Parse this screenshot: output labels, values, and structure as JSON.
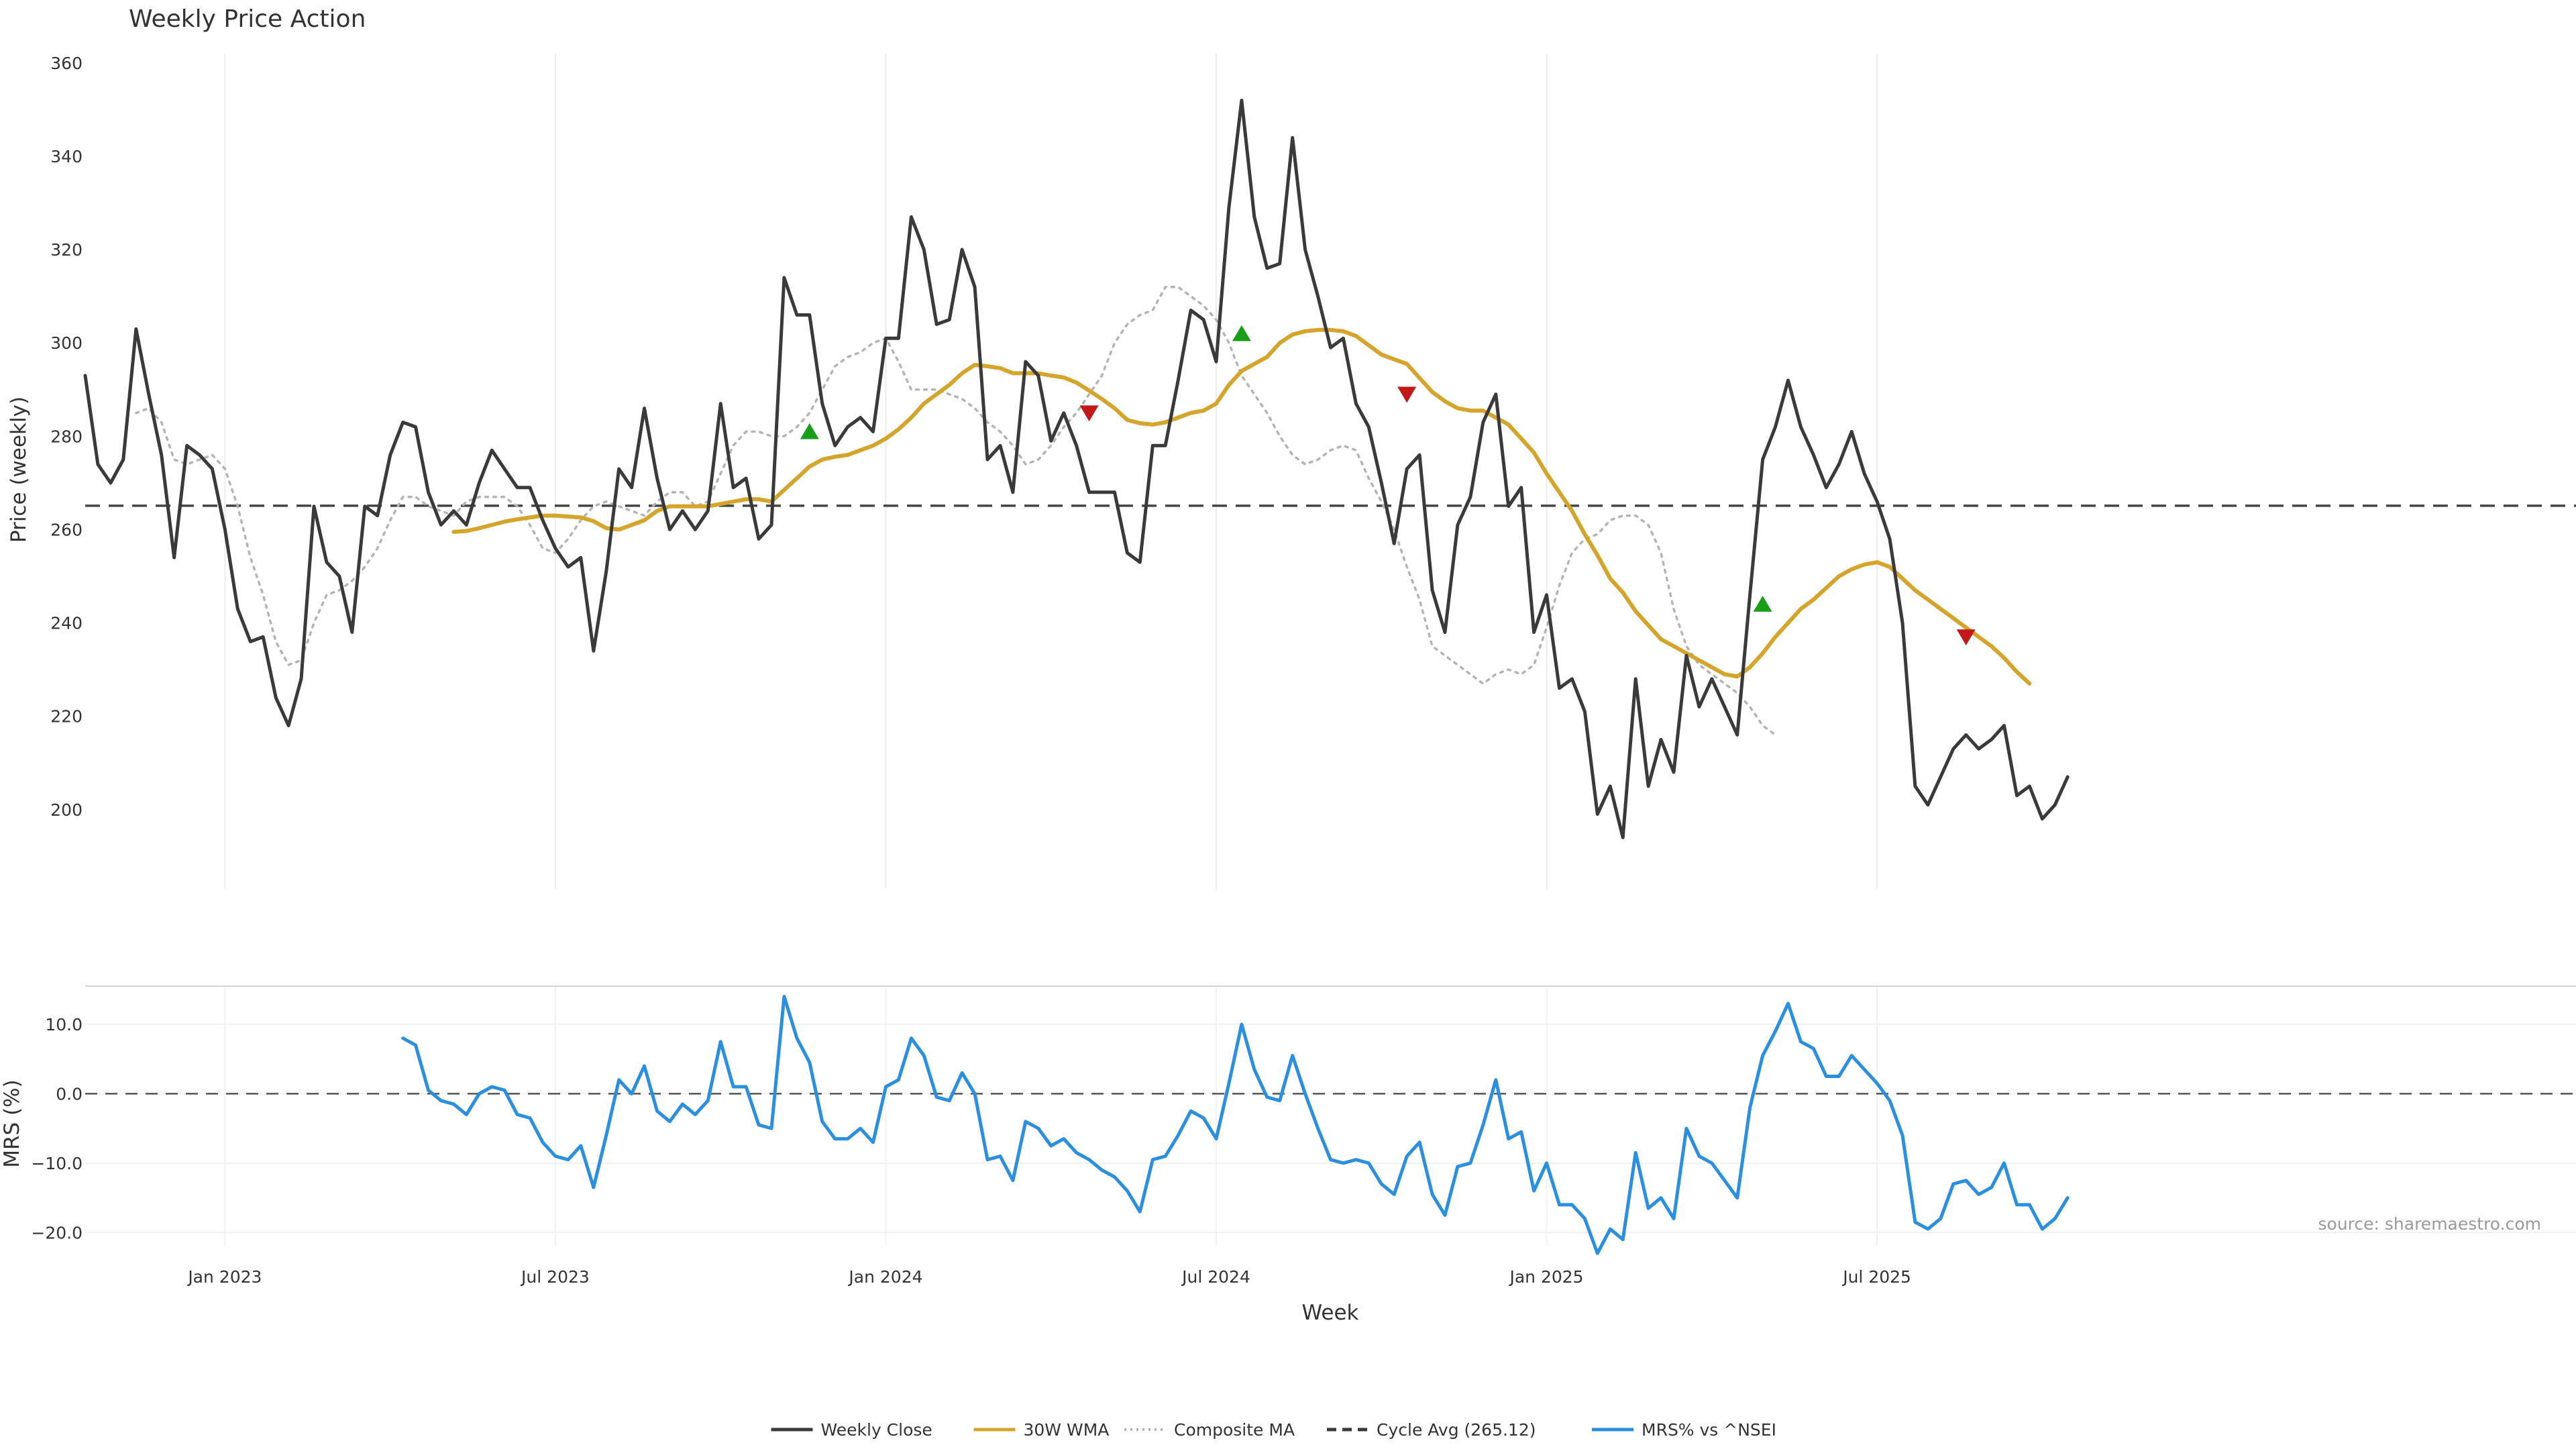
{
  "chart_data": [
    {
      "type": "line",
      "title": "Weekly Price Action",
      "ylabel": "Price (weekly)",
      "ylim": [
        183,
        362
      ],
      "yticks": [
        200,
        220,
        240,
        260,
        280,
        300,
        320,
        340,
        360
      ],
      "xlim_week": [
        0,
        196
      ],
      "x_ticks": [
        {
          "week": 11,
          "label": "Jan 2023"
        },
        {
          "week": 37,
          "label": "Jul 2023"
        },
        {
          "week": 63,
          "label": "Jan 2024"
        },
        {
          "week": 89,
          "label": "Jul 2024"
        },
        {
          "week": 115,
          "label": "Jan 2025"
        },
        {
          "week": 141,
          "label": "Jul 2025"
        }
      ],
      "cycle_avg": 265.12,
      "series": [
        {
          "name": "Weekly Close",
          "color": "#3a3a3a",
          "values": [
            293,
            274,
            270,
            275,
            303,
            289,
            276,
            254,
            278,
            276,
            273,
            260,
            243,
            236,
            237,
            224,
            218,
            228,
            265,
            253,
            250,
            238,
            265,
            263,
            276,
            283,
            282,
            268,
            261,
            264,
            261,
            270,
            277,
            273,
            269,
            269,
            262,
            256,
            252,
            254,
            234,
            251,
            273,
            269,
            286,
            271,
            260,
            264,
            260,
            264,
            287,
            269,
            271,
            258,
            261,
            314,
            306,
            306,
            287,
            278,
            282,
            284,
            281,
            301,
            301,
            327,
            320,
            304,
            305,
            320,
            312,
            275,
            278,
            268,
            296,
            293,
            279,
            285,
            278,
            268,
            268,
            268,
            255,
            253,
            278,
            278,
            292,
            307,
            305,
            296,
            329,
            352,
            327,
            316,
            317,
            344,
            320,
            310,
            299,
            301,
            287,
            282,
            270,
            257,
            273,
            276,
            247,
            238,
            261,
            267,
            283,
            289,
            265,
            269,
            238,
            246,
            226,
            228,
            221,
            199,
            205,
            194,
            228,
            205,
            215,
            208,
            233,
            222,
            228,
            222,
            216,
            246,
            275,
            282,
            292,
            282,
            276,
            269,
            274,
            281,
            272,
            266,
            258,
            240,
            205,
            201,
            207,
            213,
            216,
            213,
            215,
            218,
            203,
            205,
            198,
            201,
            207
          ]
        },
        {
          "name": "30W WMA",
          "color": "#d4a52a",
          "start_week": 29,
          "values": [
            259.5,
            259.7,
            260.3,
            261,
            261.7,
            262.2,
            262.6,
            263,
            263,
            262.8,
            262.6,
            261.8,
            260.3,
            260,
            261,
            262,
            264,
            265,
            265,
            265,
            265,
            265.5,
            266,
            266.5,
            266.5,
            266,
            268.5,
            271,
            273.5,
            275,
            275.6,
            276,
            277,
            278,
            279.5,
            281.5,
            284,
            287,
            289,
            291,
            293.5,
            295.3,
            295,
            294.6,
            293.5,
            293.5,
            293.5,
            293,
            292.6,
            291.5,
            289.8,
            288,
            286,
            283.5,
            282.8,
            282.5,
            283,
            284,
            285,
            285.5,
            287,
            291,
            294,
            295.5,
            297,
            300,
            301.8,
            302.5,
            302.8,
            302.8,
            302.5,
            301.5,
            299.5,
            297.5,
            296.5,
            295.5,
            292.5,
            289.5,
            287.5,
            286,
            285.5,
            285.5,
            284,
            282.5,
            279.5,
            276.5,
            272,
            268,
            264,
            259,
            254.5,
            249.5,
            246.5,
            242.5,
            239.5,
            236.5,
            235,
            233.5,
            232,
            230.5,
            229,
            228.5,
            230.5,
            233.5,
            237,
            240,
            243,
            245,
            247.5,
            250,
            251.5,
            252.5,
            253,
            252,
            249.5,
            247,
            245,
            243,
            241,
            239,
            237,
            235,
            232.5,
            229.5,
            227
          ]
        },
        {
          "name": "Composite MA",
          "color": "#b4b4b4",
          "start_week": 4,
          "values": [
            285,
            286,
            283,
            275,
            274,
            275,
            276,
            273,
            265,
            254,
            246,
            236,
            231,
            232,
            240,
            246,
            247,
            249,
            252,
            256,
            262,
            267,
            267,
            265,
            264,
            263,
            266,
            267,
            267,
            267,
            265,
            261,
            256,
            255,
            258,
            262,
            265,
            266,
            265,
            264,
            263,
            266,
            268,
            268,
            265,
            266,
            272,
            278,
            281,
            281,
            280,
            280,
            282,
            285,
            290,
            295,
            297,
            298,
            300,
            301,
            296,
            290,
            290,
            290,
            289,
            288,
            286,
            283,
            281,
            278,
            274,
            275,
            278,
            282,
            285,
            289,
            293,
            300,
            304,
            306,
            307,
            312,
            312,
            310,
            308,
            305,
            300,
            293,
            289,
            285,
            280,
            276,
            274,
            275,
            277,
            278,
            277,
            271,
            266,
            260,
            252,
            245,
            235,
            233,
            231,
            229,
            227,
            229,
            230,
            229,
            231,
            239,
            248,
            255,
            258,
            259,
            262,
            263,
            263,
            261,
            255,
            243,
            235,
            231,
            229,
            227,
            225,
            222,
            218,
            216
          ]
        }
      ],
      "markers": [
        {
          "type": "buy",
          "week": 57,
          "value": 281,
          "color": "#1a9e1a"
        },
        {
          "type": "sell",
          "week": 79,
          "value": 285,
          "color": "#c21818"
        },
        {
          "type": "buy",
          "week": 91,
          "value": 302,
          "color": "#1a9e1a"
        },
        {
          "type": "sell",
          "week": 104,
          "value": 289,
          "color": "#c21818"
        },
        {
          "type": "buy",
          "week": 132,
          "value": 244,
          "color": "#1a9e1a"
        },
        {
          "type": "sell",
          "week": 148,
          "value": 237,
          "color": "#c21818"
        }
      ]
    },
    {
      "type": "line",
      "ylabel": "MRS (%)",
      "xlabel": "Week",
      "ylim": [
        -22,
        15.5
      ],
      "yticks": [
        10,
        0,
        -10,
        -20
      ],
      "ytick_labels": [
        "10.0",
        "0.0",
        "−10.0",
        "−20.0"
      ],
      "zero_line": 0,
      "series": [
        {
          "name": "MRS% vs ^NSEI",
          "color": "#2b8fe0",
          "start_week": 25,
          "values": [
            8,
            7,
            0.5,
            -1,
            -1.5,
            -3,
            0,
            1,
            0.5,
            -3,
            -3.5,
            -7,
            -9,
            -9.5,
            -7.5,
            -13.5,
            -6,
            2,
            0,
            4,
            -2.5,
            -4,
            -1.5,
            -3,
            -1,
            7.5,
            1,
            1,
            -4.5,
            -5,
            14,
            8,
            4.5,
            -4,
            -6.5,
            -6.5,
            -5,
            -7,
            1,
            2,
            8,
            5.5,
            -0.5,
            -1,
            3,
            0,
            -9.5,
            -9,
            -12.5,
            -4,
            -5,
            -7.5,
            -6.5,
            -8.5,
            -9.5,
            -11,
            -12,
            -14,
            -17,
            -9.5,
            -9,
            -6,
            -2.5,
            -3.5,
            -6.5,
            1.5,
            10,
            3.5,
            -0.5,
            -1,
            5.5,
            0,
            -5,
            -9.5,
            -10,
            -9.5,
            -10,
            -13,
            -14.5,
            -9,
            -7,
            -14.5,
            -17.5,
            -10.5,
            -10,
            -4.5,
            2,
            -6.5,
            -5.5,
            -14,
            -10,
            -16,
            -16,
            -18,
            -23,
            -19.5,
            -21,
            -8.5,
            -16.5,
            -15,
            -18,
            -5,
            -9,
            -10,
            -12.5,
            -15,
            -2,
            5.5,
            9,
            13,
            7.5,
            6.5,
            2.5,
            2.5,
            5.5,
            3.5,
            1.5,
            -1,
            -6,
            -18.5,
            -19.5,
            -18,
            -13,
            -12.5,
            -14.5,
            -13.5,
            -10,
            -16,
            -16,
            -19.5,
            -18,
            -15
          ]
        }
      ],
      "source": "source: sharemaestro.com"
    }
  ],
  "legend": [
    {
      "label": "Weekly Close",
      "style": "solid",
      "color": "#3a3a3a"
    },
    {
      "label": "30W WMA",
      "style": "solid",
      "color": "#d4a52a"
    },
    {
      "label": "Composite MA",
      "style": "dotted",
      "color": "#b4b4b4"
    },
    {
      "label": "Cycle Avg (265.12)",
      "style": "dashed",
      "color": "#3a3a3a"
    },
    {
      "label": "MRS% vs ^NSEI",
      "style": "solid",
      "color": "#2b8fe0"
    }
  ]
}
